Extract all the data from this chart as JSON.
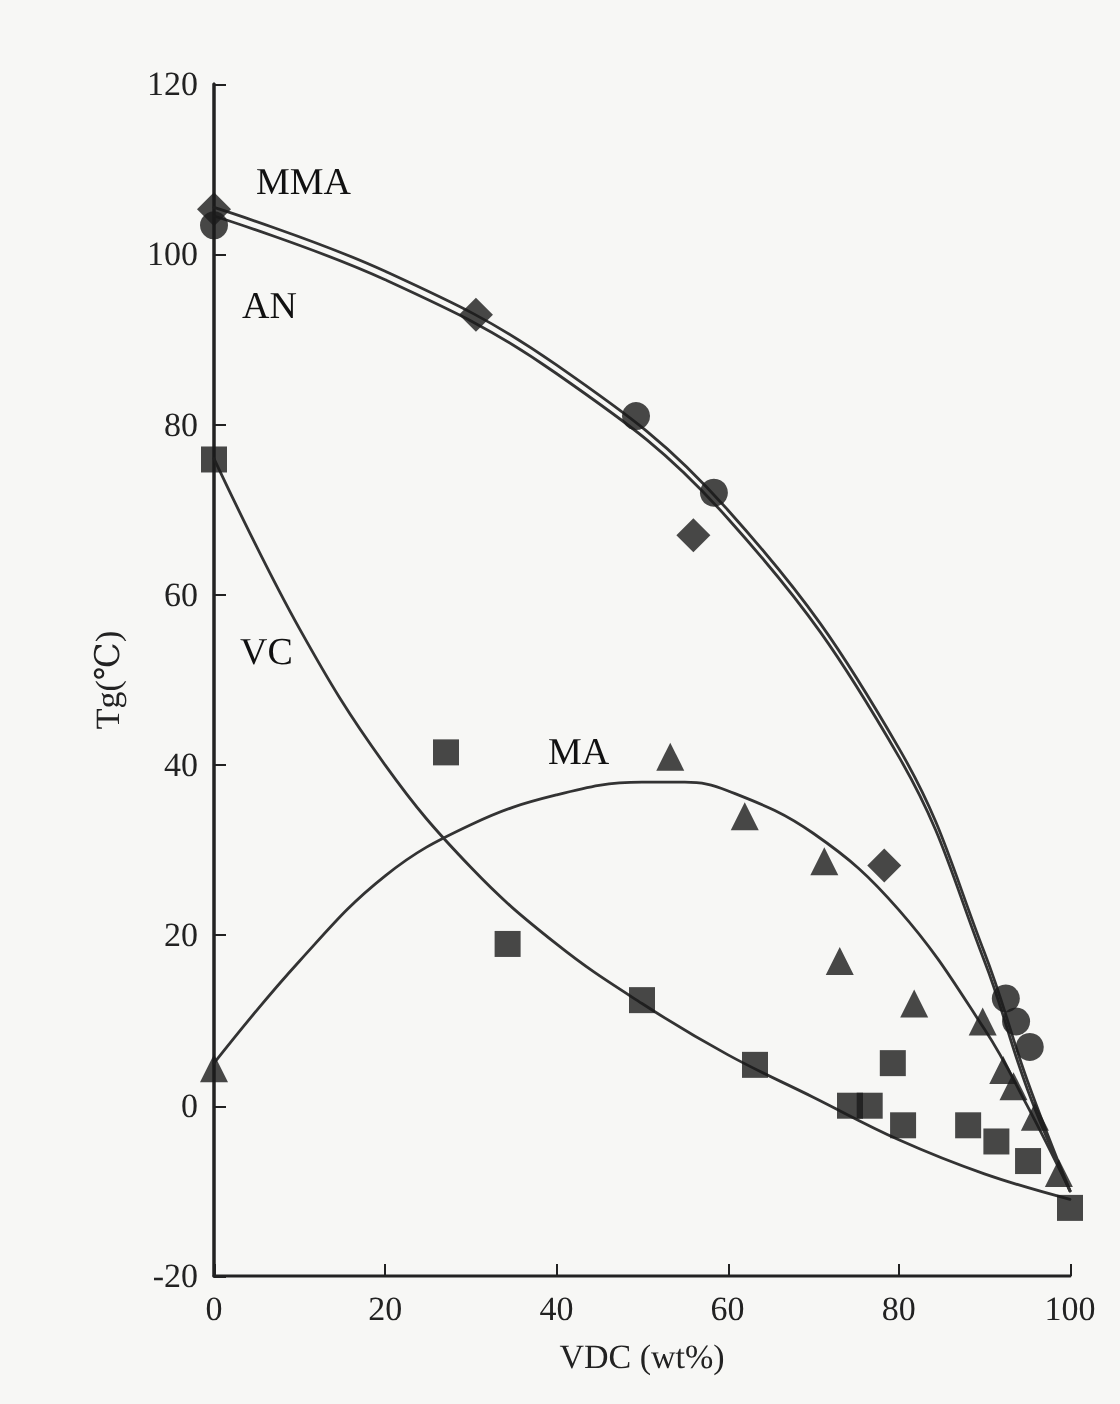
{
  "chart_data": {
    "type": "scatter",
    "xlabel": "VDC (wt%)",
    "ylabel": "Tg(℃)",
    "xlim": [
      0,
      100
    ],
    "xticks": [
      0,
      20,
      40,
      60,
      80,
      100
    ],
    "ylim": [
      -20,
      120
    ],
    "yticks": [
      -20,
      0,
      20,
      40,
      60,
      80,
      100,
      120
    ],
    "series": [
      {
        "marker": "diamond",
        "color": "#1a1a1a",
        "x": [
          0,
          30.6,
          56,
          78.3
        ],
        "values": [
          105.3,
          92.9,
          67,
          28.2
        ]
      },
      {
        "marker": "circle",
        "color": "#1a1a1a",
        "x": [
          0,
          49.3,
          58.4,
          92.5,
          93.7,
          95.3
        ],
        "values": [
          103.4,
          81,
          72,
          12.6,
          9.9,
          6.9
        ]
      },
      {
        "marker": "square",
        "color": "#1a1a1a",
        "x": [
          0,
          27.1,
          34.3,
          50,
          63.2,
          74.3,
          76.6,
          79.3,
          80.5,
          88.1,
          91.4,
          95.1,
          100
        ],
        "values": [
          75.9,
          41.5,
          19,
          12.4,
          4.8,
          0,
          0,
          5,
          -2.3,
          -2.3,
          -4.2,
          -6.5,
          -12
        ]
      },
      {
        "marker": "triangle",
        "color": "#1a1a1a",
        "x": [
          0,
          53.3,
          62,
          71.3,
          73.1,
          81.8,
          89.8,
          92.2,
          93.4,
          95.9,
          98.7
        ],
        "values": [
          4.4,
          41,
          34,
          28.7,
          17,
          12,
          9.9,
          4.2,
          2.3,
          -1.3,
          -7.9
        ]
      },
      {
        "type": "line",
        "marker": "none",
        "line_style": "solid",
        "color": "#333333",
        "x": [
          0,
          20,
          40,
          60,
          80,
          90,
          95,
          100
        ],
        "values": [
          105.5,
          98,
          87,
          70,
          42,
          18,
          3,
          -10
        ]
      },
      {
        "type": "line",
        "marker": "none",
        "line_style": "solid",
        "color": "#333333",
        "x": [
          0,
          20,
          40,
          60,
          80,
          90,
          95,
          100
        ],
        "values": [
          104.5,
          97,
          86,
          69,
          41,
          17,
          2,
          -10
        ]
      },
      {
        "type": "line",
        "marker": "none",
        "line_style": "solid",
        "color": "#333333",
        "x": [
          0,
          10,
          20,
          30,
          40,
          50,
          60,
          70,
          80,
          90,
          100
        ],
        "values": [
          76,
          56,
          40,
          28,
          19,
          12,
          6,
          1,
          -4,
          -8,
          -11
        ]
      },
      {
        "type": "line",
        "marker": "none",
        "line_style": "solid",
        "color": "#333333",
        "x": [
          0,
          10,
          20,
          30,
          40,
          50,
          55,
          60,
          70,
          80,
          90,
          95,
          100
        ],
        "values": [
          5,
          17,
          27,
          33,
          36.5,
          38,
          38,
          37,
          32,
          23,
          9,
          0,
          -10
        ]
      }
    ],
    "annotations": [
      "MMA",
      "AN",
      "VC",
      "MA"
    ]
  }
}
